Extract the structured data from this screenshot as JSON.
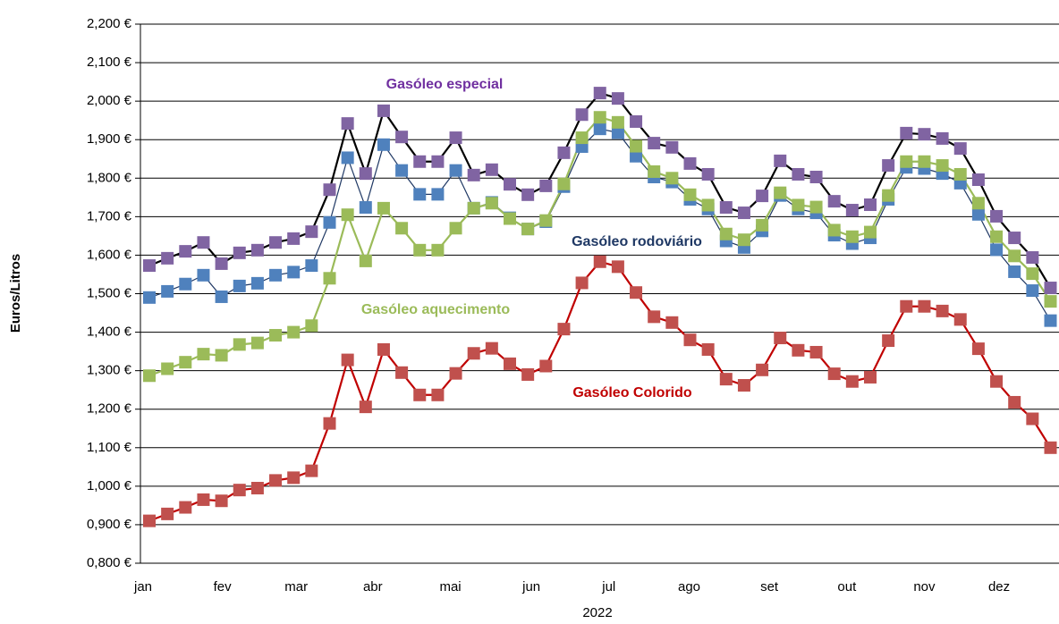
{
  "chart_data": {
    "type": "line",
    "x_label": "2022",
    "y_label": "Euros/Litros",
    "categories": [
      "jan",
      null,
      null,
      null,
      "fev",
      null,
      null,
      null,
      "mar",
      null,
      null,
      null,
      "abr",
      null,
      null,
      null,
      null,
      "mai",
      null,
      null,
      null,
      "jun",
      null,
      null,
      null,
      "jul",
      null,
      null,
      null,
      null,
      "ago",
      null,
      null,
      null,
      "set",
      null,
      null,
      null,
      null,
      "out",
      null,
      null,
      null,
      "nov",
      null,
      null,
      null,
      "dez",
      null,
      null,
      null
    ],
    "series": [
      {
        "name": "Gasóleo especial",
        "color": "#8064a2",
        "line_color": "#000000",
        "label_color": "#7030a0",
        "values": [
          1.573,
          1.592,
          1.61,
          1.633,
          1.578,
          1.606,
          1.613,
          1.633,
          1.643,
          1.661,
          1.77,
          1.942,
          1.812,
          1.975,
          1.907,
          1.843,
          1.843,
          1.905,
          1.808,
          1.822,
          1.784,
          1.757,
          1.78,
          1.866,
          1.965,
          2.021,
          2.007,
          1.947,
          1.891,
          1.88,
          1.838,
          1.81,
          1.724,
          1.71,
          1.754,
          1.845,
          1.81,
          1.803,
          1.74,
          1.717,
          1.731,
          1.833,
          1.917,
          1.914,
          1.903,
          1.877,
          1.796,
          1.701,
          1.645,
          1.594,
          1.515
        ]
      },
      {
        "name": "Gasóleo rodoviário",
        "color": "#4f81bd",
        "line_color": "#1f3864",
        "label_color": "#1f3864",
        "values": [
          1.49,
          1.506,
          1.525,
          1.548,
          1.492,
          1.52,
          1.527,
          1.548,
          1.556,
          1.573,
          1.685,
          1.853,
          1.724,
          1.887,
          1.82,
          1.758,
          1.758,
          1.82,
          1.722,
          1.737,
          1.697,
          1.668,
          1.687,
          1.778,
          1.882,
          1.928,
          1.918,
          1.857,
          1.803,
          1.79,
          1.745,
          1.72,
          1.637,
          1.62,
          1.663,
          1.755,
          1.72,
          1.71,
          1.652,
          1.63,
          1.645,
          1.745,
          1.828,
          1.825,
          1.812,
          1.787,
          1.706,
          1.614,
          1.557,
          1.508,
          1.43
        ]
      },
      {
        "name": "Gasóleo aquecimento",
        "color": "#9bbb59",
        "line_color": "#9bbb59",
        "label_color": "#9bbb59",
        "values": [
          1.287,
          1.305,
          1.322,
          1.343,
          1.34,
          1.368,
          1.372,
          1.392,
          1.4,
          1.417,
          1.54,
          1.705,
          1.585,
          1.722,
          1.67,
          1.613,
          1.613,
          1.67,
          1.722,
          1.735,
          1.695,
          1.668,
          1.69,
          1.785,
          1.905,
          1.958,
          1.945,
          1.883,
          1.817,
          1.8,
          1.757,
          1.73,
          1.655,
          1.64,
          1.678,
          1.762,
          1.73,
          1.725,
          1.665,
          1.648,
          1.66,
          1.755,
          1.843,
          1.843,
          1.833,
          1.81,
          1.735,
          1.648,
          1.598,
          1.552,
          1.48
        ]
      },
      {
        "name": "Gasóleo Colorido",
        "color": "#c0504d",
        "line_color": "#c00000",
        "label_color": "#c00000",
        "values": [
          0.91,
          0.928,
          0.945,
          0.965,
          0.962,
          0.99,
          0.995,
          1.015,
          1.022,
          1.04,
          1.163,
          1.328,
          1.206,
          1.355,
          1.295,
          1.237,
          1.237,
          1.293,
          1.345,
          1.358,
          1.318,
          1.29,
          1.312,
          1.408,
          1.528,
          1.583,
          1.57,
          1.503,
          1.44,
          1.425,
          1.38,
          1.355,
          1.278,
          1.262,
          1.302,
          1.385,
          1.353,
          1.348,
          1.292,
          1.272,
          1.283,
          1.378,
          1.467,
          1.467,
          1.455,
          1.433,
          1.357,
          1.272,
          1.218,
          1.175,
          1.1
        ]
      }
    ],
    "ylim": [
      0.8,
      2.2
    ],
    "yticks": [
      {
        "value": 0.8,
        "label": "0,800 €"
      },
      {
        "value": 0.9,
        "label": "0,900 €"
      },
      {
        "value": 1.0,
        "label": "1,000 €"
      },
      {
        "value": 1.1,
        "label": "1,100 €"
      },
      {
        "value": 1.2,
        "label": "1,200 €"
      },
      {
        "value": 1.3,
        "label": "1,300 €"
      },
      {
        "value": 1.4,
        "label": "1,400 €"
      },
      {
        "value": 1.5,
        "label": "1,500 €"
      },
      {
        "value": 1.6,
        "label": "1,600 €"
      },
      {
        "value": 1.7,
        "label": "1,700 €"
      },
      {
        "value": 1.8,
        "label": "1,800 €"
      },
      {
        "value": 1.9,
        "label": "1,900 €"
      },
      {
        "value": 2.0,
        "label": "2,000 €"
      },
      {
        "value": 2.1,
        "label": "2,100 €"
      },
      {
        "value": 2.2,
        "label": "2,200 €"
      }
    ],
    "grid": true
  }
}
